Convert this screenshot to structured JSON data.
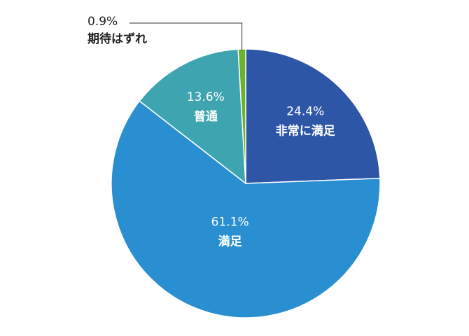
{
  "chart_data": {
    "type": "pie",
    "categories": [
      "非常に満足",
      "満足",
      "普通",
      "期待はずれ"
    ],
    "values": [
      24.4,
      61.1,
      13.6,
      0.9
    ],
    "value_labels": [
      "24.4%",
      "61.1%",
      "13.6%",
      "0.9%"
    ],
    "colors": [
      "#2e56a6",
      "#2a8fd0",
      "#3ea5b0",
      "#6bb32e"
    ]
  }
}
